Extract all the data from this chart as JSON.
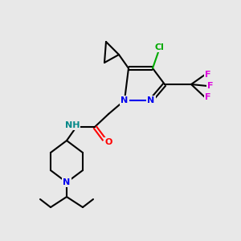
{
  "background_color": "#e8e8e8",
  "atom_colors": {
    "N": "#0000ee",
    "O": "#ff0000",
    "Cl": "#00aa00",
    "F": "#dd00dd",
    "H_label": "#008888",
    "C": "#000000"
  },
  "figsize": [
    3.0,
    3.0
  ],
  "dpi": 100
}
